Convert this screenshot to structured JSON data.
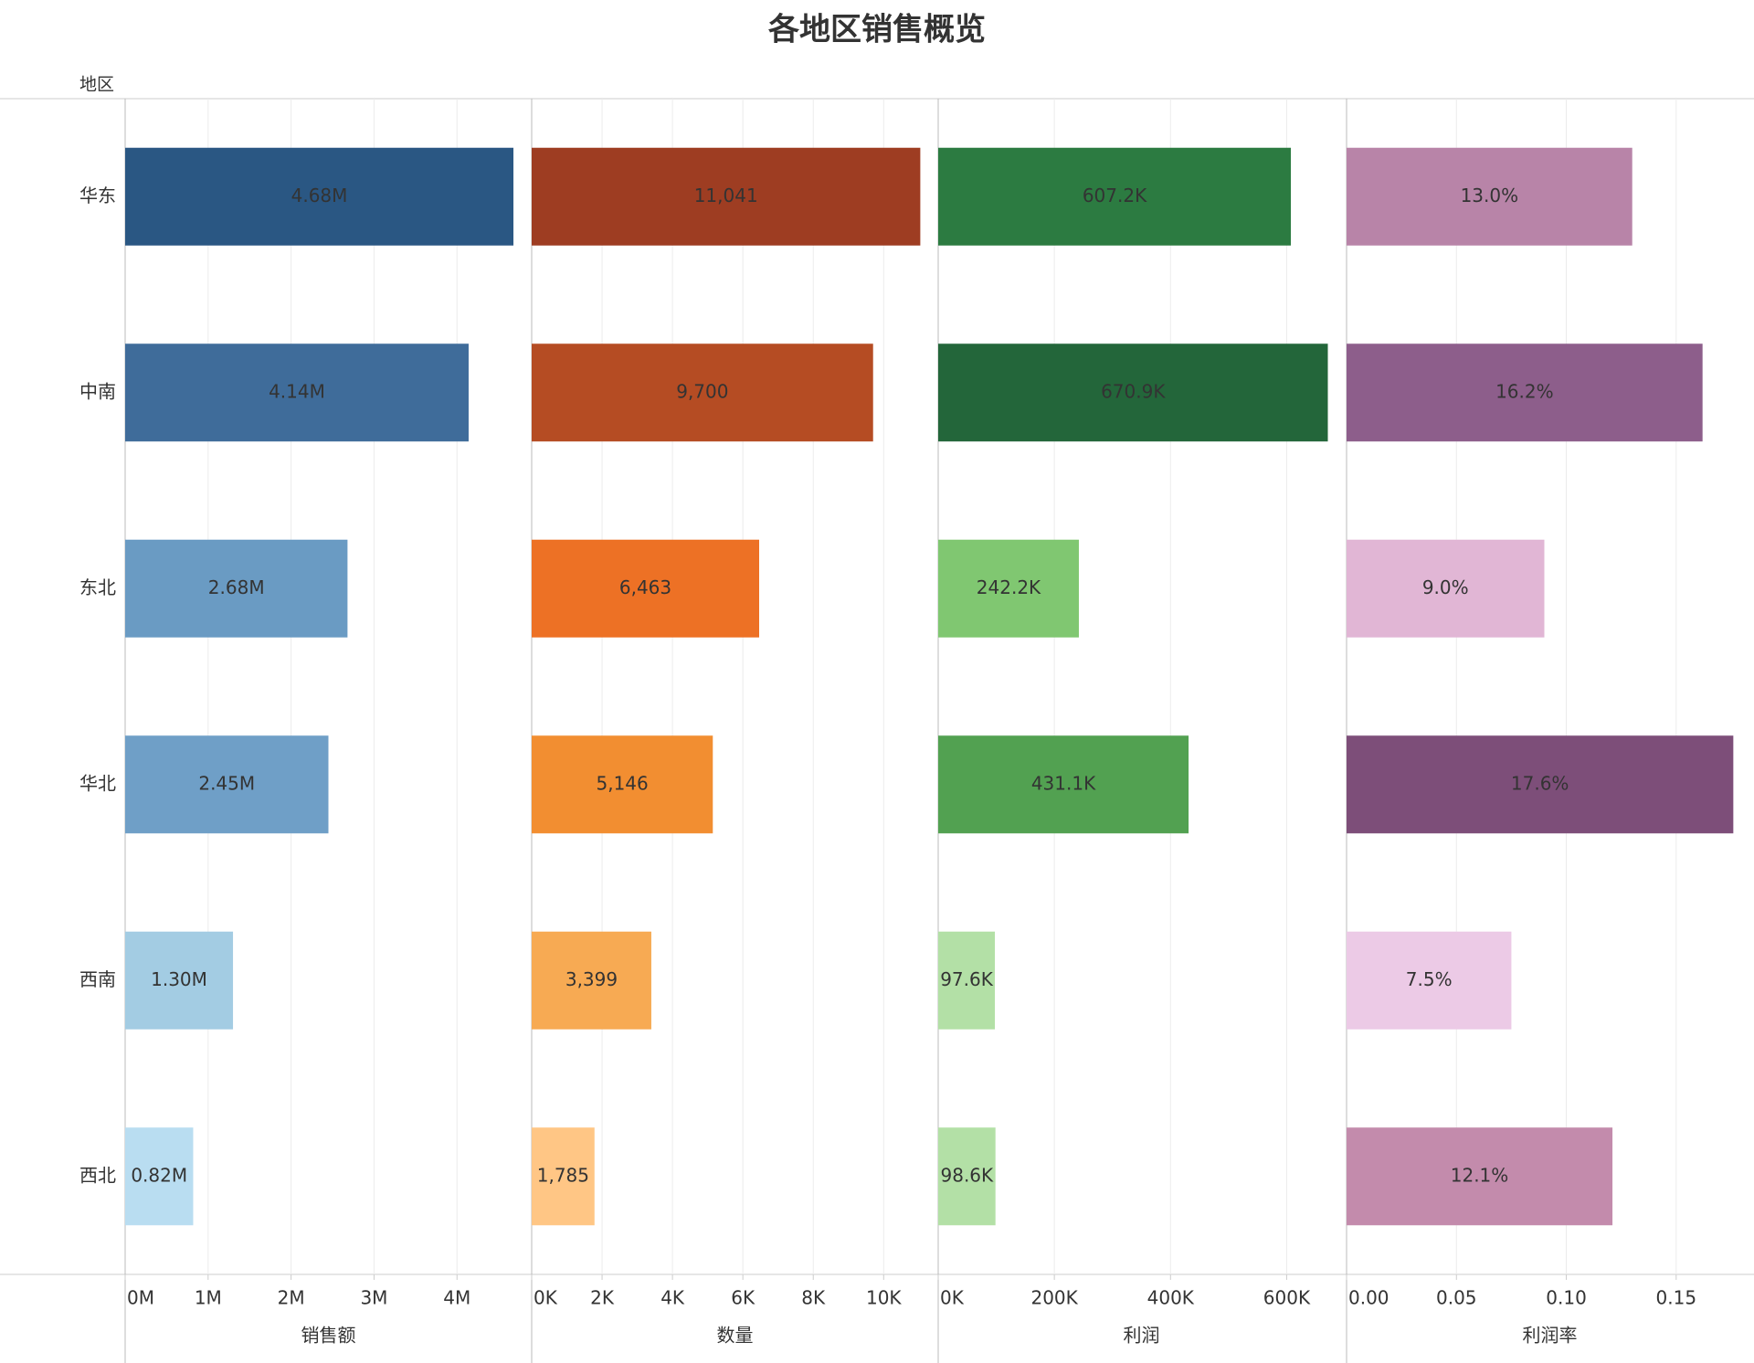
{
  "title": "各地区销售概览",
  "row_header": "地区",
  "chart_data": {
    "type": "bar",
    "orientation": "horizontal",
    "layout": "small-multiples",
    "grid": true,
    "categories": [
      "华东",
      "中南",
      "东北",
      "华北",
      "西南",
      "西北"
    ],
    "series": [
      {
        "name": "销售额",
        "values": [
          4680000,
          4140000,
          2680000,
          2450000,
          1300000,
          820000
        ],
        "value_labels": [
          "4.68M",
          "4.14M",
          "2.68M",
          "2.45M",
          "1.30M",
          "0.82M"
        ],
        "colors": [
          "#2a5783",
          "#3f6c9a",
          "#6a9bc3",
          "#6f9fc7",
          "#a3cce3",
          "#b9ddf1"
        ],
        "xlim": [
          0,
          4900000
        ],
        "xticks": [
          {
            "value": 0,
            "label": "0M"
          },
          {
            "value": 1000000,
            "label": "1M"
          },
          {
            "value": 2000000,
            "label": "2M"
          },
          {
            "value": 3000000,
            "label": "3M"
          },
          {
            "value": 4000000,
            "label": "4M"
          }
        ]
      },
      {
        "name": "数量",
        "values": [
          11041,
          9700,
          6463,
          5146,
          3399,
          1785
        ],
        "value_labels": [
          "11,041",
          "9,700",
          "6,463",
          "5,146",
          "3,399",
          "1,785"
        ],
        "colors": [
          "#9e3d22",
          "#b54c23",
          "#ed7125",
          "#f28e31",
          "#f7aa53",
          "#ffc685"
        ],
        "xlim": [
          0,
          11550
        ],
        "xticks": [
          {
            "value": 0,
            "label": "0K"
          },
          {
            "value": 2000,
            "label": "2K"
          },
          {
            "value": 4000,
            "label": "4K"
          },
          {
            "value": 6000,
            "label": "6K"
          },
          {
            "value": 8000,
            "label": "8K"
          },
          {
            "value": 10000,
            "label": "10K"
          }
        ]
      },
      {
        "name": "利润",
        "values": [
          607200,
          670900,
          242200,
          431100,
          97600,
          98600
        ],
        "value_labels": [
          "607.2K",
          "670.9K",
          "242.2K",
          "431.1K",
          "97.6K",
          "98.6K"
        ],
        "colors": [
          "#2c7b41",
          "#23663a",
          "#80c771",
          "#52a151",
          "#b3e0a6",
          "#b3e0a6"
        ],
        "xlim": [
          0,
          700000
        ],
        "xticks": [
          {
            "value": 0,
            "label": "0K"
          },
          {
            "value": 200000,
            "label": "200K"
          },
          {
            "value": 400000,
            "label": "400K"
          },
          {
            "value": 600000,
            "label": "600K"
          }
        ]
      },
      {
        "name": "利润率",
        "values": [
          0.13,
          0.162,
          0.09,
          0.176,
          0.075,
          0.121
        ],
        "value_labels": [
          "13.0%",
          "16.2%",
          "9.0%",
          "17.6%",
          "7.5%",
          "12.1%"
        ],
        "colors": [
          "#b884a8",
          "#8d5e8b",
          "#e1b6d5",
          "#7d4e79",
          "#eccae6",
          "#c38bac"
        ],
        "xlim": [
          0,
          0.185
        ],
        "xticks": [
          {
            "value": 0,
            "label": "0.00"
          },
          0.05,
          {
            "value": 0.1,
            "label": "0.10"
          },
          0.15
        ]
      }
    ]
  }
}
